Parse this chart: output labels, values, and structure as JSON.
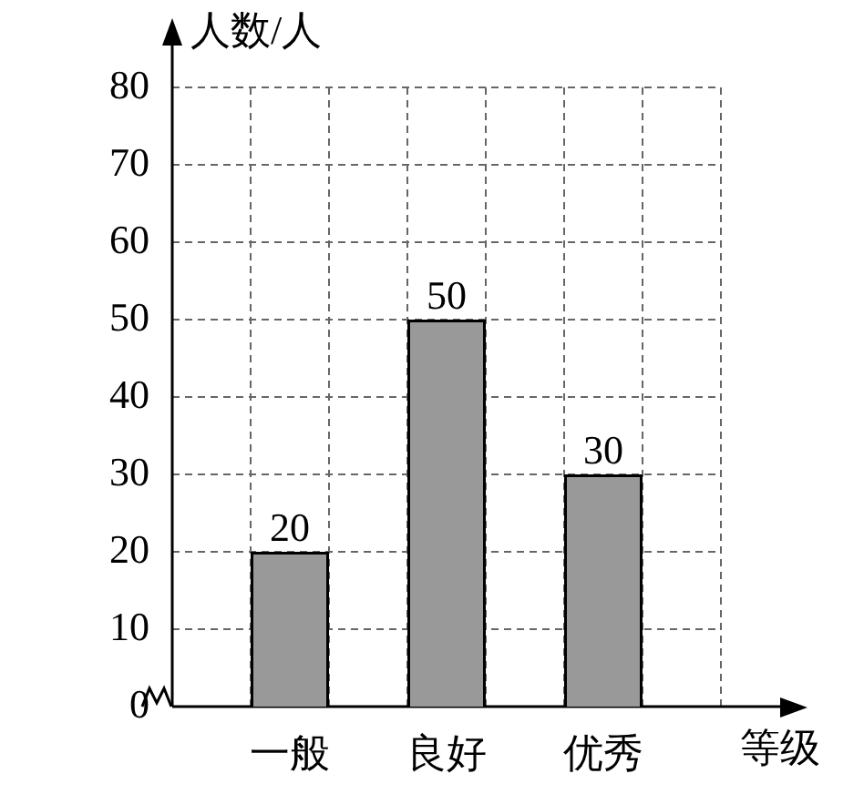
{
  "chart_data": {
    "type": "bar",
    "categories": [
      "一般",
      "良好",
      "优秀"
    ],
    "values": [
      20,
      50,
      30
    ],
    "color": "#999999",
    "xlabel": "等级",
    "ylabel": "人数/人",
    "ylim": [
      0,
      80
    ],
    "yticks": [
      0,
      10,
      20,
      30,
      40,
      50,
      60,
      70,
      80
    ],
    "grid": true,
    "data_labels": true
  }
}
